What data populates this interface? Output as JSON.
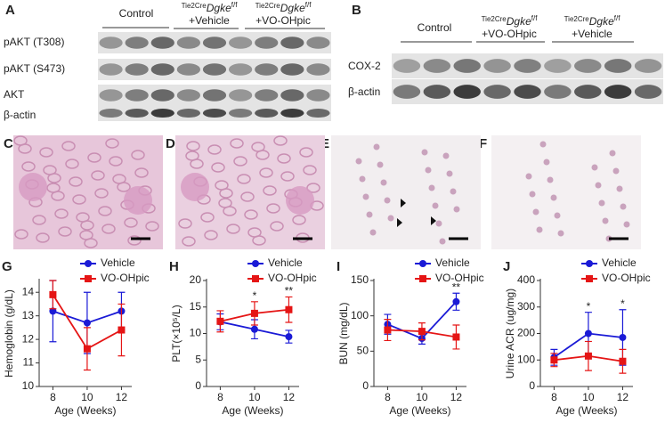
{
  "panel_labels": {
    "A": "A",
    "B": "B",
    "C": "C",
    "D": "D",
    "E": "E",
    "F": "F"
  },
  "blot_a": {
    "groups": [
      {
        "text": "Control"
      },
      {
        "pre": "Tie2Cre",
        "gene": "Dgke",
        "sup": "f/f",
        "text": "+Vehicle"
      },
      {
        "pre": "Tie2Cre",
        "gene": "Dgke",
        "sup": "f/f",
        "text": "+VO-OHpic"
      }
    ],
    "rows": [
      "pAKT (T308)",
      "pAKT (S473)",
      "AKT",
      "β-actin"
    ]
  },
  "blot_b": {
    "groups": [
      {
        "text": "Control"
      },
      {
        "pre": "Tie2Cre",
        "gene": "Dgke",
        "sup": "f/f",
        "text": "+VO-OHpic"
      },
      {
        "pre": "Tie2Cre",
        "gene": "Dgke",
        "sup": "f/f",
        "text": "+Vehicle"
      }
    ],
    "rows": [
      "COX-2",
      "β-actin"
    ]
  },
  "chart_data": [
    {
      "type": "line",
      "panel": "G",
      "y_label": "Hemoglobin (g/dL)",
      "x_label": "Age (Weeks)",
      "x": [
        8,
        10,
        12
      ],
      "xlim": [
        7.2,
        12.6
      ],
      "xticks": [
        8,
        10,
        12
      ],
      "ylim": [
        10,
        14.5
      ],
      "yticks": [
        10,
        11,
        12,
        13,
        14
      ],
      "legend": "top-right",
      "series": [
        {
          "name": "Vehicle",
          "color": "#1a1ad6",
          "values": [
            13.2,
            12.7,
            13.2
          ],
          "errors": [
            1.3,
            1.3,
            0.8
          ]
        },
        {
          "name": "VO-OHpic",
          "color": "#e51515",
          "values": [
            13.9,
            11.6,
            12.4
          ],
          "errors": [
            0.6,
            0.9,
            1.1
          ]
        }
      ],
      "annotations": []
    },
    {
      "type": "line",
      "panel": "H",
      "y_label": "PLT(×10⁵/L)",
      "x_label": "Age (Weeks)",
      "x": [
        8,
        10,
        12
      ],
      "xlim": [
        7.2,
        12.6
      ],
      "xticks": [
        8,
        10,
        12
      ],
      "ylim": [
        0,
        20
      ],
      "yticks": [
        0,
        5,
        10,
        15,
        20
      ],
      "legend": "top-right",
      "series": [
        {
          "name": "Vehicle",
          "color": "#1a1ad6",
          "values": [
            12.2,
            10.8,
            9.4
          ],
          "errors": [
            1.5,
            1.8,
            1.2
          ]
        },
        {
          "name": "VO-OHpic",
          "color": "#e51515",
          "values": [
            12.3,
            13.8,
            14.5
          ],
          "errors": [
            2.0,
            2.2,
            2.4
          ]
        }
      ],
      "annotations": [
        {
          "x": 10,
          "text": "*"
        },
        {
          "x": 12,
          "text": "**"
        }
      ]
    },
    {
      "type": "line",
      "panel": "I",
      "y_label": "BUN (mg/dL)",
      "x_label": "Age (Weeks)",
      "x": [
        8,
        10,
        12
      ],
      "xlim": [
        7.2,
        12.6
      ],
      "xticks": [
        8,
        10,
        12
      ],
      "ylim": [
        0,
        150
      ],
      "yticks": [
        0,
        50,
        100,
        150
      ],
      "legend": "top-right",
      "series": [
        {
          "name": "Vehicle",
          "color": "#1a1ad6",
          "values": [
            88,
            68,
            120
          ],
          "errors": [
            14,
            8,
            12
          ]
        },
        {
          "name": "VO-OHpic",
          "color": "#e51515",
          "values": [
            80,
            78,
            70
          ],
          "errors": [
            15,
            12,
            17
          ]
        }
      ],
      "annotations": [
        {
          "x": 12,
          "text": "**"
        }
      ]
    },
    {
      "type": "line",
      "panel": "J",
      "y_label": "Urine ACR (ug/mg)",
      "x_label": "Age (Weeks)",
      "x": [
        8,
        10,
        12
      ],
      "xlim": [
        7.2,
        12.6
      ],
      "xticks": [
        8,
        10,
        12
      ],
      "ylim": [
        0,
        400
      ],
      "yticks": [
        0,
        100,
        200,
        300,
        400
      ],
      "legend": "top-right",
      "series": [
        {
          "name": "Vehicle",
          "color": "#1a1ad6",
          "values": [
            110,
            200,
            185
          ],
          "errors": [
            30,
            80,
            105
          ]
        },
        {
          "name": "VO-OHpic",
          "color": "#e51515",
          "values": [
            100,
            115,
            95
          ],
          "errors": [
            25,
            55,
            45
          ]
        }
      ],
      "annotations": [
        {
          "x": 10,
          "text": "*"
        },
        {
          "x": 12,
          "text": "*"
        }
      ]
    }
  ]
}
